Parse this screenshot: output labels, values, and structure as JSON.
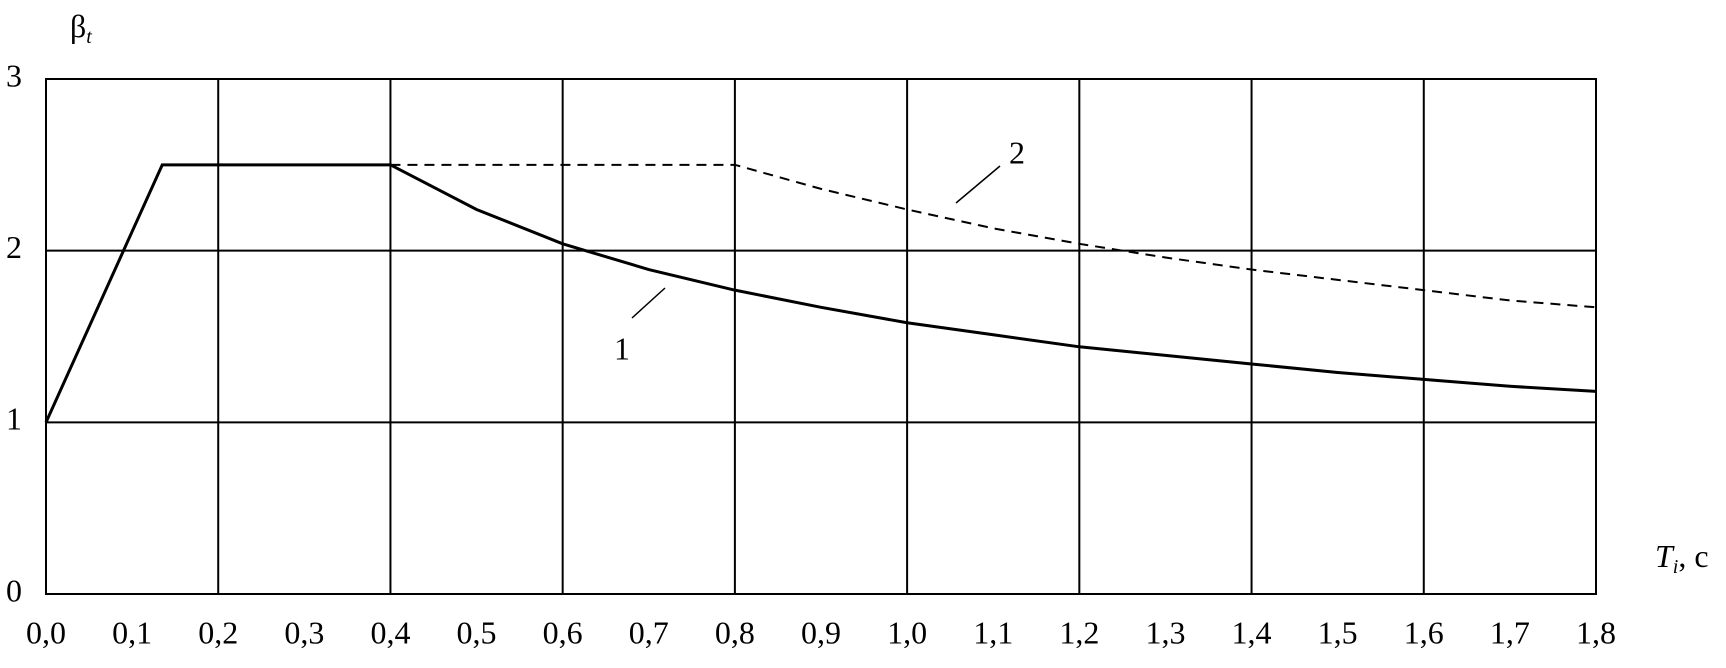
{
  "chart_data": {
    "type": "line",
    "ylabel": {
      "main": "β",
      "sub": "t"
    },
    "xlabel": {
      "main": "T",
      "sub": "i",
      "unit": ", c"
    },
    "xlim": [
      0,
      1.8
    ],
    "ylim": [
      0,
      3
    ],
    "xticks": [
      {
        "value": 0,
        "label": "0,0"
      },
      {
        "value": 0.1,
        "label": "0,1"
      },
      {
        "value": 0.2,
        "label": "0,2"
      },
      {
        "value": 0.3,
        "label": "0,3"
      },
      {
        "value": 0.4,
        "label": "0,4"
      },
      {
        "value": 0.5,
        "label": "0,5"
      },
      {
        "value": 0.6,
        "label": "0,6"
      },
      {
        "value": 0.7,
        "label": "0,7"
      },
      {
        "value": 0.8,
        "label": "0,8"
      },
      {
        "value": 0.9,
        "label": "0,9"
      },
      {
        "value": 1.0,
        "label": "1,0"
      },
      {
        "value": 1.1,
        "label": "1,1"
      },
      {
        "value": 1.2,
        "label": "1,2"
      },
      {
        "value": 1.3,
        "label": "1,3"
      },
      {
        "value": 1.4,
        "label": "1,4"
      },
      {
        "value": 1.5,
        "label": "1,5"
      },
      {
        "value": 1.6,
        "label": "1,6"
      },
      {
        "value": 1.7,
        "label": "1,7"
      },
      {
        "value": 1.8,
        "label": "1,8"
      }
    ],
    "yticks": [
      0,
      1,
      2,
      3
    ],
    "grid": true,
    "series": [
      {
        "name": "1",
        "color": "#000000",
        "dash": false,
        "x": [
          0,
          0.135,
          0.4,
          0.5,
          0.6,
          0.7,
          0.8,
          0.9,
          1.0,
          1.1,
          1.2,
          1.3,
          1.4,
          1.5,
          1.6,
          1.7,
          1.8
        ],
        "values": [
          1,
          2.5,
          2.5,
          2.24,
          2.04,
          1.89,
          1.77,
          1.67,
          1.58,
          1.51,
          1.44,
          1.39,
          1.34,
          1.29,
          1.25,
          1.21,
          1.18
        ]
      },
      {
        "name": "2",
        "color": "#000000",
        "dash": true,
        "x": [
          0.4,
          0.8,
          0.9,
          1.0,
          1.1,
          1.2,
          1.3,
          1.4,
          1.5,
          1.6,
          1.7,
          1.8
        ],
        "values": [
          2.5,
          2.5,
          2.36,
          2.24,
          2.13,
          2.04,
          1.96,
          1.89,
          1.83,
          1.77,
          1.71,
          1.67
        ]
      }
    ]
  }
}
